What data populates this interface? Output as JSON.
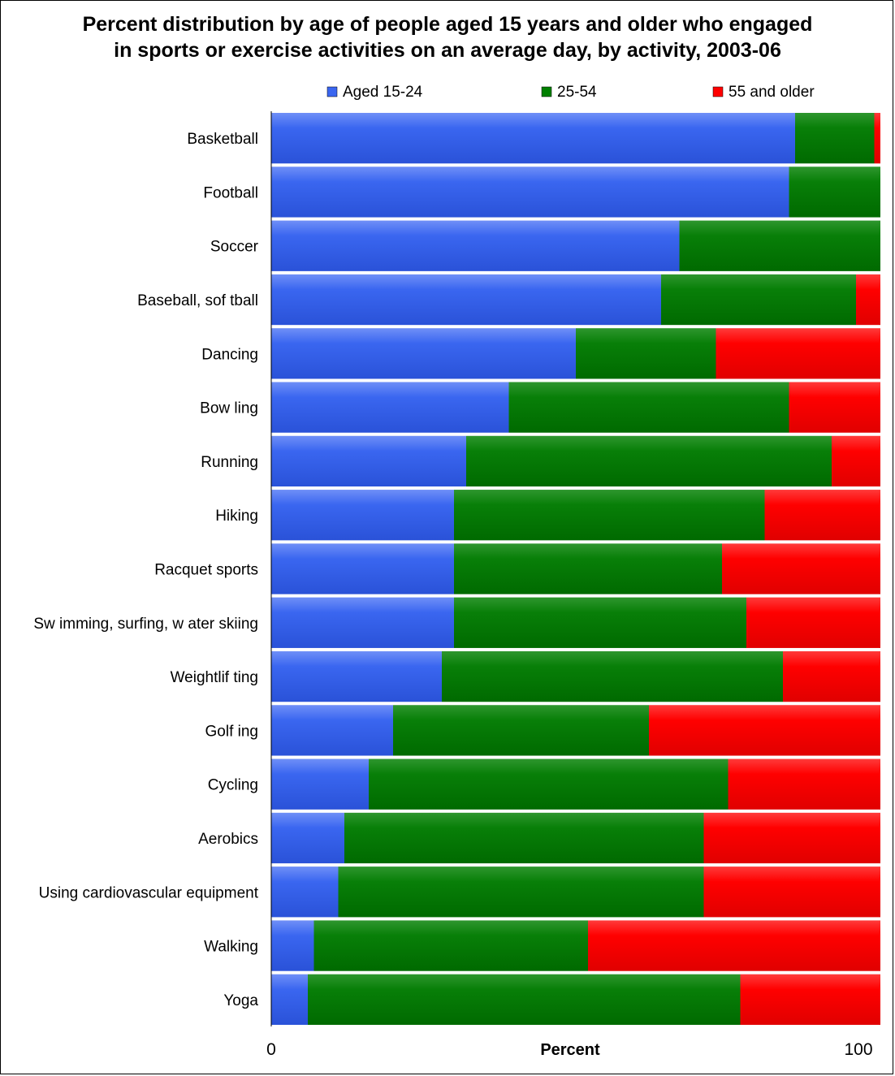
{
  "chart_data": {
    "type": "bar",
    "orientation": "horizontal",
    "stacked": true,
    "title_line1": "Percent distribution by age of people aged 15 years and older who engaged",
    "title_line2": "in sports or exercise activities on an average day, by activity,  2003-06",
    "xlabel": "Percent",
    "ylabel": "",
    "xlim": [
      0,
      100
    ],
    "x_ticks": [
      "0",
      "100"
    ],
    "legend_position": "top",
    "grid": false,
    "categories": [
      "Basketball",
      "Football",
      "Soccer",
      "Baseball, softball",
      "Dancing",
      "Bowling",
      "Running",
      "Hiking",
      "Racquet sports",
      "Swimming, surfing, water skiing",
      "Weightlifting",
      "Golfing",
      "Cycling",
      "Aerobics",
      "Using cardiovascular equipment",
      "Walking",
      "Yoga"
    ],
    "category_labels_display": [
      "Basketball",
      "Football",
      "Soccer",
      "Baseball, sof tball",
      "Dancing",
      "Bow ling",
      "Running",
      "Hiking",
      "Racquet sports",
      "Sw imming, surfing, w ater skiing",
      "Weightlif ting",
      "Golf ing",
      "Cycling",
      "Aerobics",
      "Using cardiovascular equipment",
      "Walking",
      "Yoga"
    ],
    "series": [
      {
        "name": "Aged 15-24",
        "color": "#3a66f0",
        "values": [
          86,
          85,
          67,
          64,
          50,
          39,
          32,
          30,
          30,
          30,
          28,
          20,
          16,
          12,
          11,
          7,
          6
        ]
      },
      {
        "name": "25-54",
        "color": "#008000",
        "values": [
          13,
          15,
          33,
          32,
          23,
          46,
          60,
          51,
          44,
          48,
          56,
          42,
          59,
          59,
          60,
          45,
          71
        ]
      },
      {
        "name": "55 and older",
        "color": "#ff0000",
        "values": [
          1,
          0,
          0,
          4,
          27,
          15,
          8,
          19,
          26,
          22,
          16,
          38,
          25,
          29,
          29,
          48,
          23
        ]
      }
    ]
  }
}
